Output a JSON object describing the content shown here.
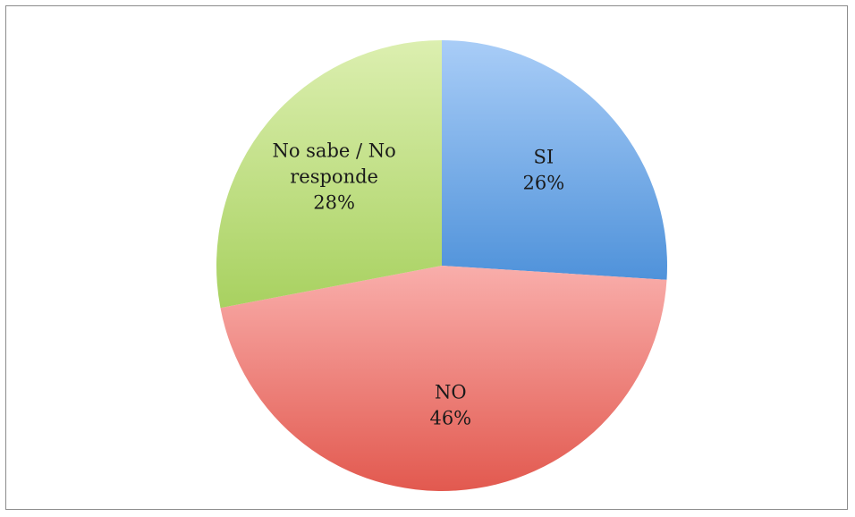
{
  "chart_data": {
    "type": "pie",
    "title": "",
    "slices": [
      {
        "label": "SI",
        "value": 26,
        "value_label": "26%",
        "color": "#6fa8e6"
      },
      {
        "label": "NO",
        "value": 46,
        "value_label": "46%",
        "color": "#ee807c"
      },
      {
        "label": "No sabe / No responde",
        "label_lines": [
          "No sabe / No",
          "responde"
        ],
        "value": 28,
        "value_label": "28%",
        "color": "#bfdf83"
      }
    ],
    "start_angle_deg": 0,
    "direction": "clockwise",
    "legend": "none",
    "data_labels": "inside"
  }
}
